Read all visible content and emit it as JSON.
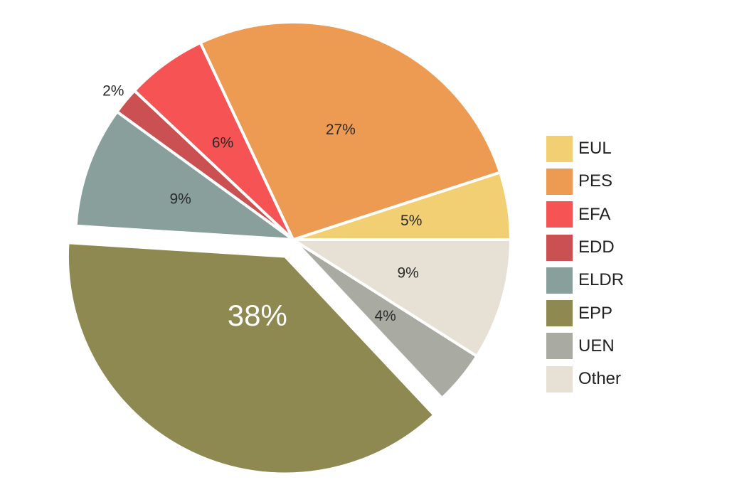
{
  "chart_data": {
    "type": "pie",
    "slices": [
      {
        "label": "EUL",
        "value": 5,
        "label_text": "5%",
        "color": "#F3CF73"
      },
      {
        "label": "PES",
        "value": 27,
        "label_text": "27%",
        "color": "#ED9B52"
      },
      {
        "label": "EFA",
        "value": 6,
        "label_text": "6%",
        "color": "#F55354"
      },
      {
        "label": "EDD",
        "value": 2,
        "label_text": "2%",
        "color": "#CB5051"
      },
      {
        "label": "ELDR",
        "value": 9,
        "label_text": "9%",
        "color": "#889F9C"
      },
      {
        "label": "EPP",
        "value": 38,
        "label_text": "38%",
        "color": "#8E8950",
        "exploded": true
      },
      {
        "label": "UEN",
        "value": 4,
        "label_text": "4%",
        "color": "#A9ABA3"
      },
      {
        "label": "Other",
        "value": 9,
        "label_text": "9%",
        "color": "#E6E1D4"
      }
    ],
    "legend_position": "right"
  }
}
